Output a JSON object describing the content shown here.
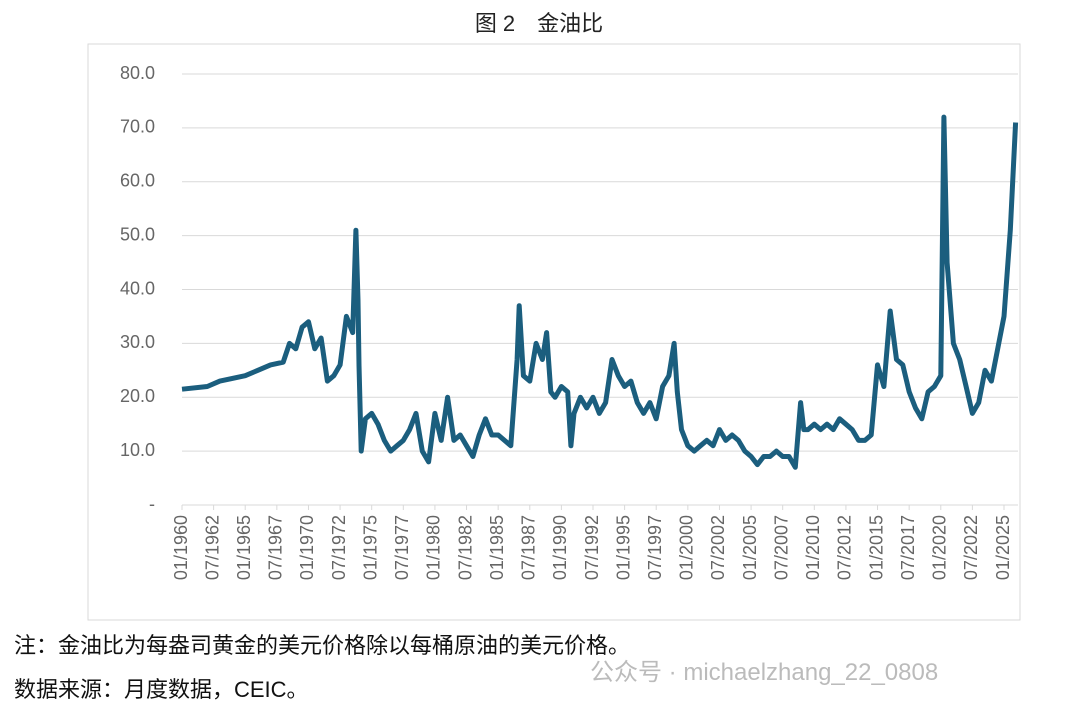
{
  "header": {
    "title": "图 2　金油比"
  },
  "chart_data": {
    "type": "line",
    "x": [
      "01/1960",
      "01/1962",
      "01/1963",
      "01/1965",
      "01/1966",
      "01/1967",
      "01/1968",
      "07/1968",
      "01/1969",
      "07/1969",
      "01/1970",
      "07/1970",
      "01/1971",
      "07/1971",
      "01/1972",
      "07/1972",
      "01/1973",
      "07/1973",
      "10/1973",
      "12/1973",
      "01/1974",
      "03/1974",
      "07/1974",
      "01/1975",
      "07/1975",
      "01/1976",
      "07/1976",
      "01/1977",
      "07/1977",
      "01/1978",
      "07/1978",
      "01/1979",
      "07/1979",
      "01/1980",
      "07/1980",
      "01/1981",
      "07/1981",
      "01/1982",
      "07/1982",
      "01/1983",
      "07/1983",
      "01/1984",
      "07/1984",
      "01/1985",
      "07/1985",
      "01/1986",
      "07/1986",
      "09/1986",
      "01/1987",
      "07/1987",
      "01/1988",
      "07/1988",
      "11/1988",
      "03/1989",
      "07/1989",
      "01/1990",
      "07/1990",
      "10/1990",
      "01/1991",
      "07/1991",
      "01/1992",
      "07/1992",
      "01/1993",
      "07/1993",
      "01/1994",
      "07/1994",
      "01/1995",
      "07/1995",
      "01/1996",
      "07/1996",
      "01/1997",
      "07/1997",
      "01/1998",
      "07/1998",
      "12/1998",
      "03/1999",
      "07/1999",
      "01/2000",
      "07/2000",
      "01/2001",
      "07/2001",
      "01/2002",
      "07/2002",
      "01/2003",
      "07/2003",
      "01/2004",
      "07/2004",
      "01/2005",
      "07/2005",
      "01/2006",
      "07/2006",
      "01/2007",
      "07/2007",
      "01/2008",
      "07/2008",
      "12/2008",
      "03/2009",
      "07/2009",
      "01/2010",
      "07/2010",
      "01/2011",
      "07/2011",
      "01/2012",
      "07/2012",
      "01/2013",
      "07/2013",
      "01/2014",
      "07/2014",
      "01/2015",
      "07/2015",
      "01/2016",
      "07/2016",
      "01/2017",
      "07/2017",
      "01/2018",
      "07/2018",
      "01/2019",
      "07/2019",
      "01/2020",
      "04/2020",
      "07/2020",
      "01/2021",
      "07/2021",
      "01/2022",
      "07/2022",
      "01/2023",
      "07/2023",
      "01/2024",
      "07/2024",
      "01/2025",
      "07/2025",
      "12/2025"
    ],
    "values": [
      21.5,
      22,
      23,
      24,
      25,
      26,
      26.5,
      30,
      29,
      33,
      34,
      29,
      31,
      23,
      24,
      26,
      35,
      32,
      51,
      38,
      26,
      10,
      16,
      17,
      15,
      12,
      10,
      11,
      12,
      14,
      17,
      10,
      8,
      17,
      12,
      20,
      12,
      13,
      11,
      9,
      13,
      16,
      13,
      13,
      12,
      11,
      27,
      37,
      24,
      23,
      30,
      27,
      32,
      21,
      20,
      22,
      21,
      11,
      17,
      20,
      18,
      20,
      17,
      19,
      27,
      24,
      22,
      23,
      19,
      17,
      19,
      16,
      22,
      24,
      30,
      21,
      14,
      11,
      10,
      11,
      12,
      11,
      14,
      12,
      13,
      12,
      10,
      9,
      7.5,
      9,
      9,
      10,
      9,
      9,
      7,
      19,
      14,
      14,
      15,
      14,
      15,
      14,
      16,
      15,
      14,
      12,
      12,
      13,
      26,
      22,
      36,
      27,
      26,
      21,
      18,
      16,
      21,
      22,
      24,
      72,
      45,
      30,
      27,
      22,
      17,
      19,
      25,
      23,
      29,
      35,
      51,
      71
    ],
    "color": "#1b5e7e",
    "xticks": [
      "01/1960",
      "07/1962",
      "01/1965",
      "07/1967",
      "01/1970",
      "07/1972",
      "01/1975",
      "07/1977",
      "01/1980",
      "07/1982",
      "01/1985",
      "07/1987",
      "01/1990",
      "07/1992",
      "01/1995",
      "07/1997",
      "01/2000",
      "07/2002",
      "01/2005",
      "07/2007",
      "01/2010",
      "07/2012",
      "01/2015",
      "07/2017",
      "01/2020",
      "07/2022",
      "01/2025"
    ],
    "ylim": [
      0,
      80
    ],
    "yticks": [
      {
        "value": 0,
        "label": "-"
      },
      {
        "value": 10,
        "label": "10.0"
      },
      {
        "value": 20,
        "label": "20.0"
      },
      {
        "value": 30,
        "label": "30.0"
      },
      {
        "value": 40,
        "label": "40.0"
      },
      {
        "value": 50,
        "label": "50.0"
      },
      {
        "value": 60,
        "label": "60.0"
      },
      {
        "value": 70,
        "label": "70.0"
      },
      {
        "value": 80,
        "label": "80.0"
      }
    ],
    "grid": true
  },
  "notes": [
    "注：金油比为每盎司黄金的美元价格除以每桶原油的美元价格。",
    "数据来源：月度数据，CEIC。"
  ],
  "watermark": "公众号 · michaelzhang_22_0808"
}
